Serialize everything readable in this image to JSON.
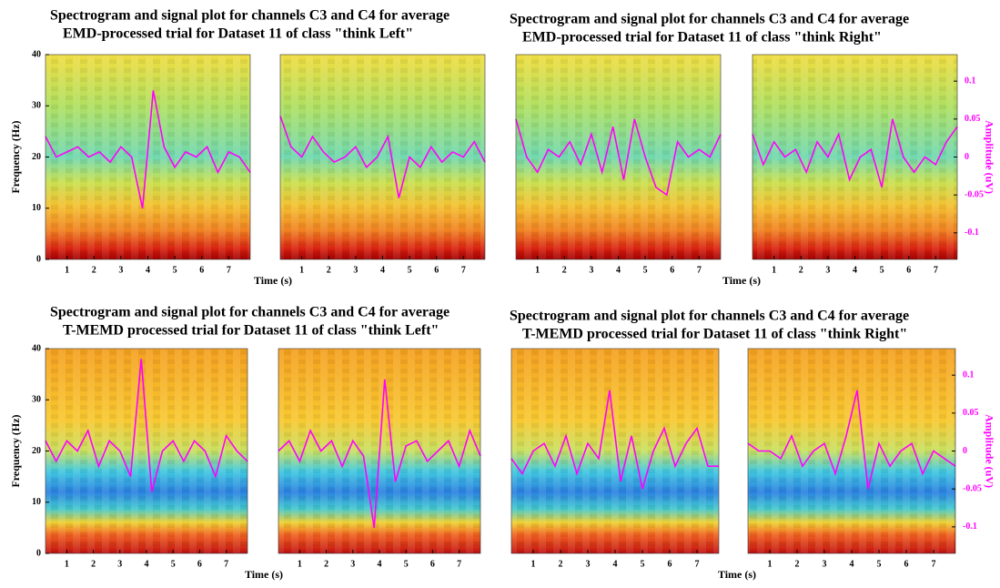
{
  "chart_data": [
    {
      "type": "line",
      "title": [
        "Spectrogram and signal plot for channels C3 and C4 for average",
        "EMD-processed trial for Dataset 11 of class \"think Left\""
      ],
      "xlabel": "Time (s)",
      "ylabel": "Frequency (Hz)",
      "x": [
        0.2,
        0.6,
        1.0,
        1.4,
        1.8,
        2.2,
        2.6,
        3.0,
        3.4,
        3.8,
        4.2,
        4.6,
        5.0,
        5.4,
        5.8,
        6.2,
        6.6,
        7.0,
        7.4,
        7.8
      ],
      "xlim": [
        0.2,
        7.8
      ],
      "xticks": [
        1,
        2,
        3,
        4,
        5,
        6,
        7
      ],
      "ylim": [
        0,
        40
      ],
      "yticks": [
        0,
        10,
        20,
        30,
        40
      ],
      "series": [
        {
          "color": "#ff00ff",
          "values": [
            24,
            20,
            21,
            22,
            20,
            21,
            19,
            22,
            20,
            10,
            33,
            22,
            18,
            21,
            20,
            22,
            17,
            21,
            20,
            17
          ]
        },
        {
          "color": "#ff00ff",
          "values": [
            28,
            22,
            20,
            24,
            21,
            19,
            20,
            22,
            18,
            20,
            24,
            12,
            20,
            18,
            22,
            19,
            21,
            20,
            23,
            19
          ]
        }
      ]
    },
    {
      "type": "line",
      "title": [
        "Spectrogram and signal plot for channels C3 and C4 for average",
        "EMD-processed trial for Dataset 11 of class \"think Right\""
      ],
      "xlabel": "Time (s)",
      "y2label": "Amplitude (uV)",
      "x": [
        0.2,
        0.6,
        1.0,
        1.4,
        1.8,
        2.2,
        2.6,
        3.0,
        3.4,
        3.8,
        4.2,
        4.6,
        5.0,
        5.4,
        5.8,
        6.2,
        6.6,
        7.0,
        7.4,
        7.8
      ],
      "xlim": [
        0.2,
        7.8
      ],
      "xticks": [
        1,
        2,
        3,
        4,
        5,
        6,
        7
      ],
      "y2lim": [
        -0.135,
        0.135
      ],
      "y2ticks": [
        -0.1,
        -0.05,
        0,
        0.05,
        0.1
      ],
      "series": [
        {
          "color": "#ff00ff",
          "axis": "y2",
          "values": [
            0.05,
            0,
            -0.02,
            0.01,
            0,
            0.02,
            -0.01,
            0.03,
            -0.02,
            0.04,
            -0.03,
            0.05,
            0,
            -0.04,
            -0.05,
            0.02,
            0,
            0.01,
            0,
            0.03
          ]
        },
        {
          "color": "#ff00ff",
          "axis": "y2",
          "values": [
            0.03,
            -0.01,
            0.02,
            0,
            0.01,
            -0.02,
            0.02,
            0,
            0.03,
            -0.03,
            0,
            0.01,
            -0.04,
            0.05,
            0,
            -0.02,
            0,
            -0.01,
            0.02,
            0.04
          ]
        }
      ]
    },
    {
      "type": "line",
      "title": [
        "Spectrogram and signal plot for channels C3 and C4 for average",
        "T-MEMD processed trial for Dataset 11 of class \"think Left\""
      ],
      "xlabel": "Time (s)",
      "ylabel": "Frequency (Hz)",
      "x": [
        0.2,
        0.6,
        1.0,
        1.4,
        1.8,
        2.2,
        2.6,
        3.0,
        3.4,
        3.8,
        4.2,
        4.6,
        5.0,
        5.4,
        5.8,
        6.2,
        6.6,
        7.0,
        7.4,
        7.8
      ],
      "xlim": [
        0.2,
        7.8
      ],
      "xticks": [
        1,
        2,
        3,
        4,
        5,
        6,
        7
      ],
      "ylim": [
        0,
        40
      ],
      "yticks": [
        0,
        10,
        20,
        30,
        40
      ],
      "series": [
        {
          "color": "#ff00ff",
          "values": [
            22,
            18,
            22,
            20,
            24,
            17,
            22,
            20,
            15,
            38,
            12,
            20,
            22,
            18,
            22,
            20,
            15,
            23,
            20,
            18
          ]
        },
        {
          "color": "#ff00ff",
          "values": [
            20,
            22,
            18,
            24,
            20,
            22,
            17,
            22,
            19,
            5,
            34,
            14,
            21,
            22,
            18,
            20,
            22,
            17,
            24,
            19
          ]
        }
      ]
    },
    {
      "type": "line",
      "title": [
        "Spectrogram and signal plot for channels C3 and C4 for average",
        "T-MEMD processed trial for Dataset 11 of class \"think Right\""
      ],
      "xlabel": "Time (s)",
      "y2label": "Amplitude (uV)",
      "x": [
        0.2,
        0.6,
        1.0,
        1.4,
        1.8,
        2.2,
        2.6,
        3.0,
        3.4,
        3.8,
        4.2,
        4.6,
        5.0,
        5.4,
        5.8,
        6.2,
        6.6,
        7.0,
        7.4,
        7.8
      ],
      "xlim": [
        0.2,
        7.8
      ],
      "xticks": [
        1,
        2,
        3,
        4,
        5,
        6,
        7
      ],
      "y2lim": [
        -0.135,
        0.135
      ],
      "y2ticks": [
        -0.1,
        -0.05,
        0,
        0.05,
        0.1
      ],
      "series": [
        {
          "color": "#ff00ff",
          "axis": "y2",
          "values": [
            -0.01,
            -0.03,
            0,
            0.01,
            -0.02,
            0.02,
            -0.03,
            0.01,
            -0.01,
            0.08,
            -0.04,
            0.02,
            -0.05,
            0,
            0.03,
            -0.02,
            0.01,
            0.03,
            -0.02,
            -0.02
          ]
        },
        {
          "color": "#ff00ff",
          "axis": "y2",
          "values": [
            0.01,
            0,
            0,
            -0.01,
            0.02,
            -0.02,
            0,
            0.01,
            -0.03,
            0.02,
            0.08,
            -0.05,
            0.01,
            -0.02,
            0,
            0.01,
            -0.03,
            0,
            -0.01,
            -0.02
          ]
        }
      ]
    }
  ]
}
